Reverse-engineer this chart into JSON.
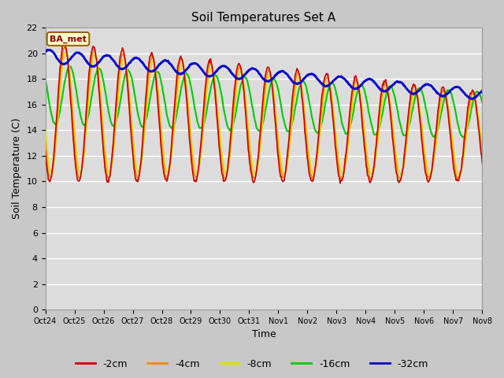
{
  "title": "Soil Temperatures Set A",
  "xlabel": "Time",
  "ylabel": "Soil Temperature (C)",
  "ylim": [
    0,
    22
  ],
  "yticks": [
    0,
    2,
    4,
    6,
    8,
    10,
    12,
    14,
    16,
    18,
    20,
    22
  ],
  "xtick_labels": [
    "Oct 24",
    "Oct 25",
    "Oct 26",
    "Oct 27",
    "Oct 28",
    "Oct 29",
    "Oct 30",
    "Oct 31",
    "Nov 1",
    "Nov 2",
    "Nov 3",
    "Nov 4",
    "Nov 5",
    "Nov 6",
    "Nov 7",
    "Nov 8"
  ],
  "series": {
    "-2cm": {
      "color": "#cc0000",
      "lw": 1.2
    },
    "-4cm": {
      "color": "#ff8800",
      "lw": 1.2
    },
    "-8cm": {
      "color": "#dddd00",
      "lw": 1.2
    },
    "-16cm": {
      "color": "#00cc00",
      "lw": 1.5
    },
    "-32cm": {
      "color": "#0000cc",
      "lw": 2.0
    }
  },
  "legend_label": "BA_met",
  "legend_bg": "#ffffcc",
  "legend_border": "#996600",
  "fig_bg": "#c8c8c8",
  "plot_bg": "#dcdcdc",
  "n_days": 15,
  "points_per_day": 48
}
